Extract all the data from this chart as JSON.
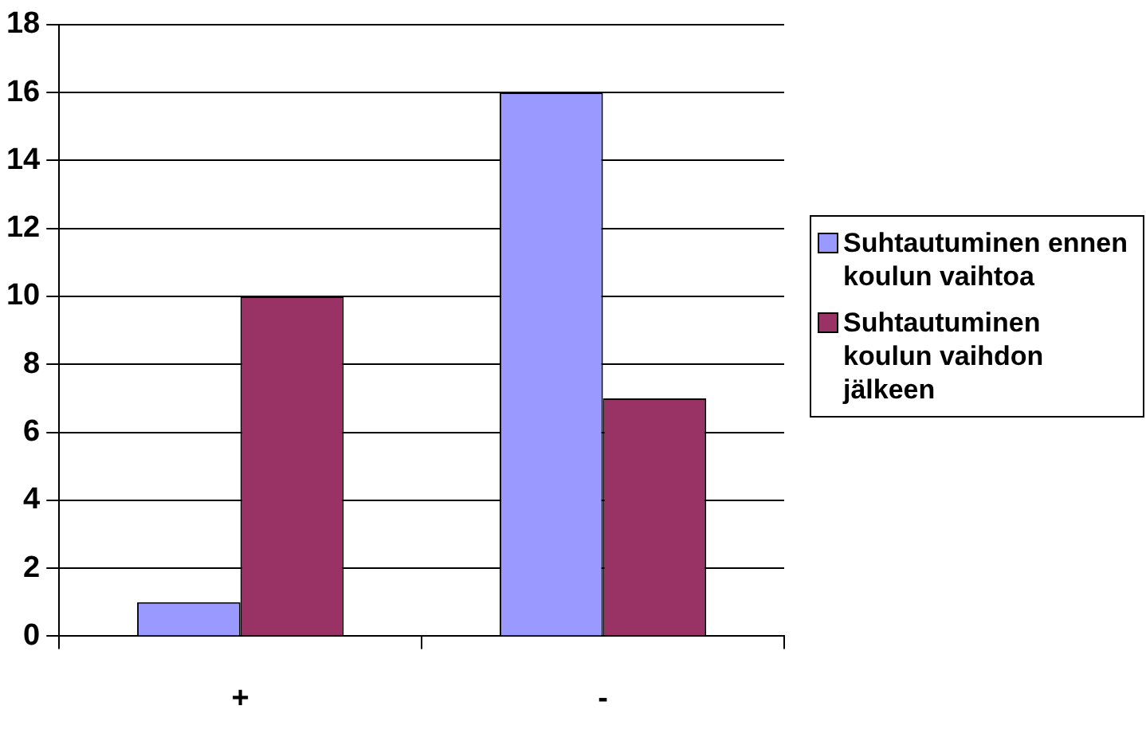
{
  "chart_data": {
    "type": "bar",
    "categories": [
      "+",
      "-"
    ],
    "series": [
      {
        "name": "Suhtautuminen ennen koulun vaihtoa",
        "color": "#9999ff",
        "values": [
          1,
          16
        ]
      },
      {
        "name": "Suhtautuminen koulun vaihdon jälkeen",
        "color": "#993366",
        "values": [
          10,
          7
        ]
      }
    ],
    "ylim": [
      0,
      18
    ],
    "yticks": [
      0,
      2,
      4,
      6,
      8,
      10,
      12,
      14,
      16,
      18
    ],
    "grid": "y",
    "legend": "right"
  }
}
